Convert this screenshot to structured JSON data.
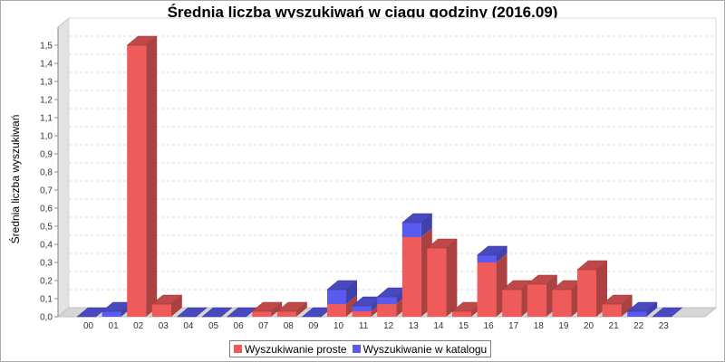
{
  "chart_data": {
    "type": "bar",
    "stacked": true,
    "title": "Średnia liczba wyszukiwań w ciągu godziny (2016.09)",
    "ylabel": "Średnia liczba wyszukiwań",
    "xlabel": "",
    "ylim": [
      0,
      1.6
    ],
    "yticks": [
      "0,0",
      "0,1",
      "0,2",
      "0,3",
      "0,4",
      "0,5",
      "0,6",
      "0,7",
      "0,8",
      "0,9",
      "1,0",
      "1,1",
      "1,2",
      "1,3",
      "1,4",
      "1,5"
    ],
    "categories": [
      "00",
      "01",
      "02",
      "03",
      "04",
      "05",
      "06",
      "07",
      "08",
      "09",
      "10",
      "11",
      "12",
      "13",
      "14",
      "15",
      "16",
      "17",
      "18",
      "19",
      "20",
      "21",
      "22",
      "23"
    ],
    "series": [
      {
        "name": "Wyszukiwanie proste",
        "color": "#ef5a5a",
        "values": [
          0,
          0,
          1.5,
          0.07,
          0,
          0,
          0,
          0.03,
          0.03,
          0,
          0.07,
          0.03,
          0.07,
          0.44,
          0.38,
          0.03,
          0.3,
          0.15,
          0.18,
          0.15,
          0.26,
          0.07,
          0,
          0
        ]
      },
      {
        "name": "Wyszukiwanie w katalogu",
        "color": "#5a5aef",
        "values": [
          0,
          0.03,
          0,
          0,
          0,
          0,
          0,
          0,
          0,
          0,
          0.08,
          0.03,
          0.04,
          0.08,
          0,
          0,
          0.04,
          0,
          0,
          0,
          0,
          0,
          0.03,
          0
        ]
      }
    ],
    "grid": true,
    "legend_position": "bottom"
  }
}
